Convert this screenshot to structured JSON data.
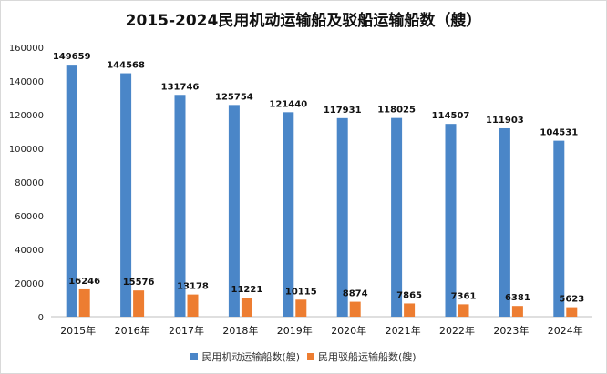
{
  "chart_data": {
    "type": "bar",
    "title": "2015-2024民用机动运输船及驳船运输船数（艘）",
    "categories": [
      "2015年",
      "2016年",
      "2017年",
      "2018年",
      "2019年",
      "2020年",
      "2021年",
      "2022年",
      "2023年",
      "2024年"
    ],
    "series": [
      {
        "name": "民用机动运输船数(艘)",
        "color": "#4a86c8",
        "values": [
          149659,
          144568,
          131746,
          125754,
          121440,
          117931,
          118025,
          114507,
          111903,
          104531
        ]
      },
      {
        "name": "民用驳船运输船数(艘)",
        "color": "#ed7d31",
        "values": [
          16246,
          15576,
          13178,
          11221,
          10115,
          8874,
          7865,
          7361,
          6381,
          5623
        ]
      }
    ],
    "ylim": [
      0,
      160000
    ],
    "yticks": [
      "0",
      "20000",
      "40000",
      "60000",
      "80000",
      "100000",
      "120000",
      "140000",
      "160000"
    ],
    "grid": false,
    "legend_position": "bottom"
  }
}
